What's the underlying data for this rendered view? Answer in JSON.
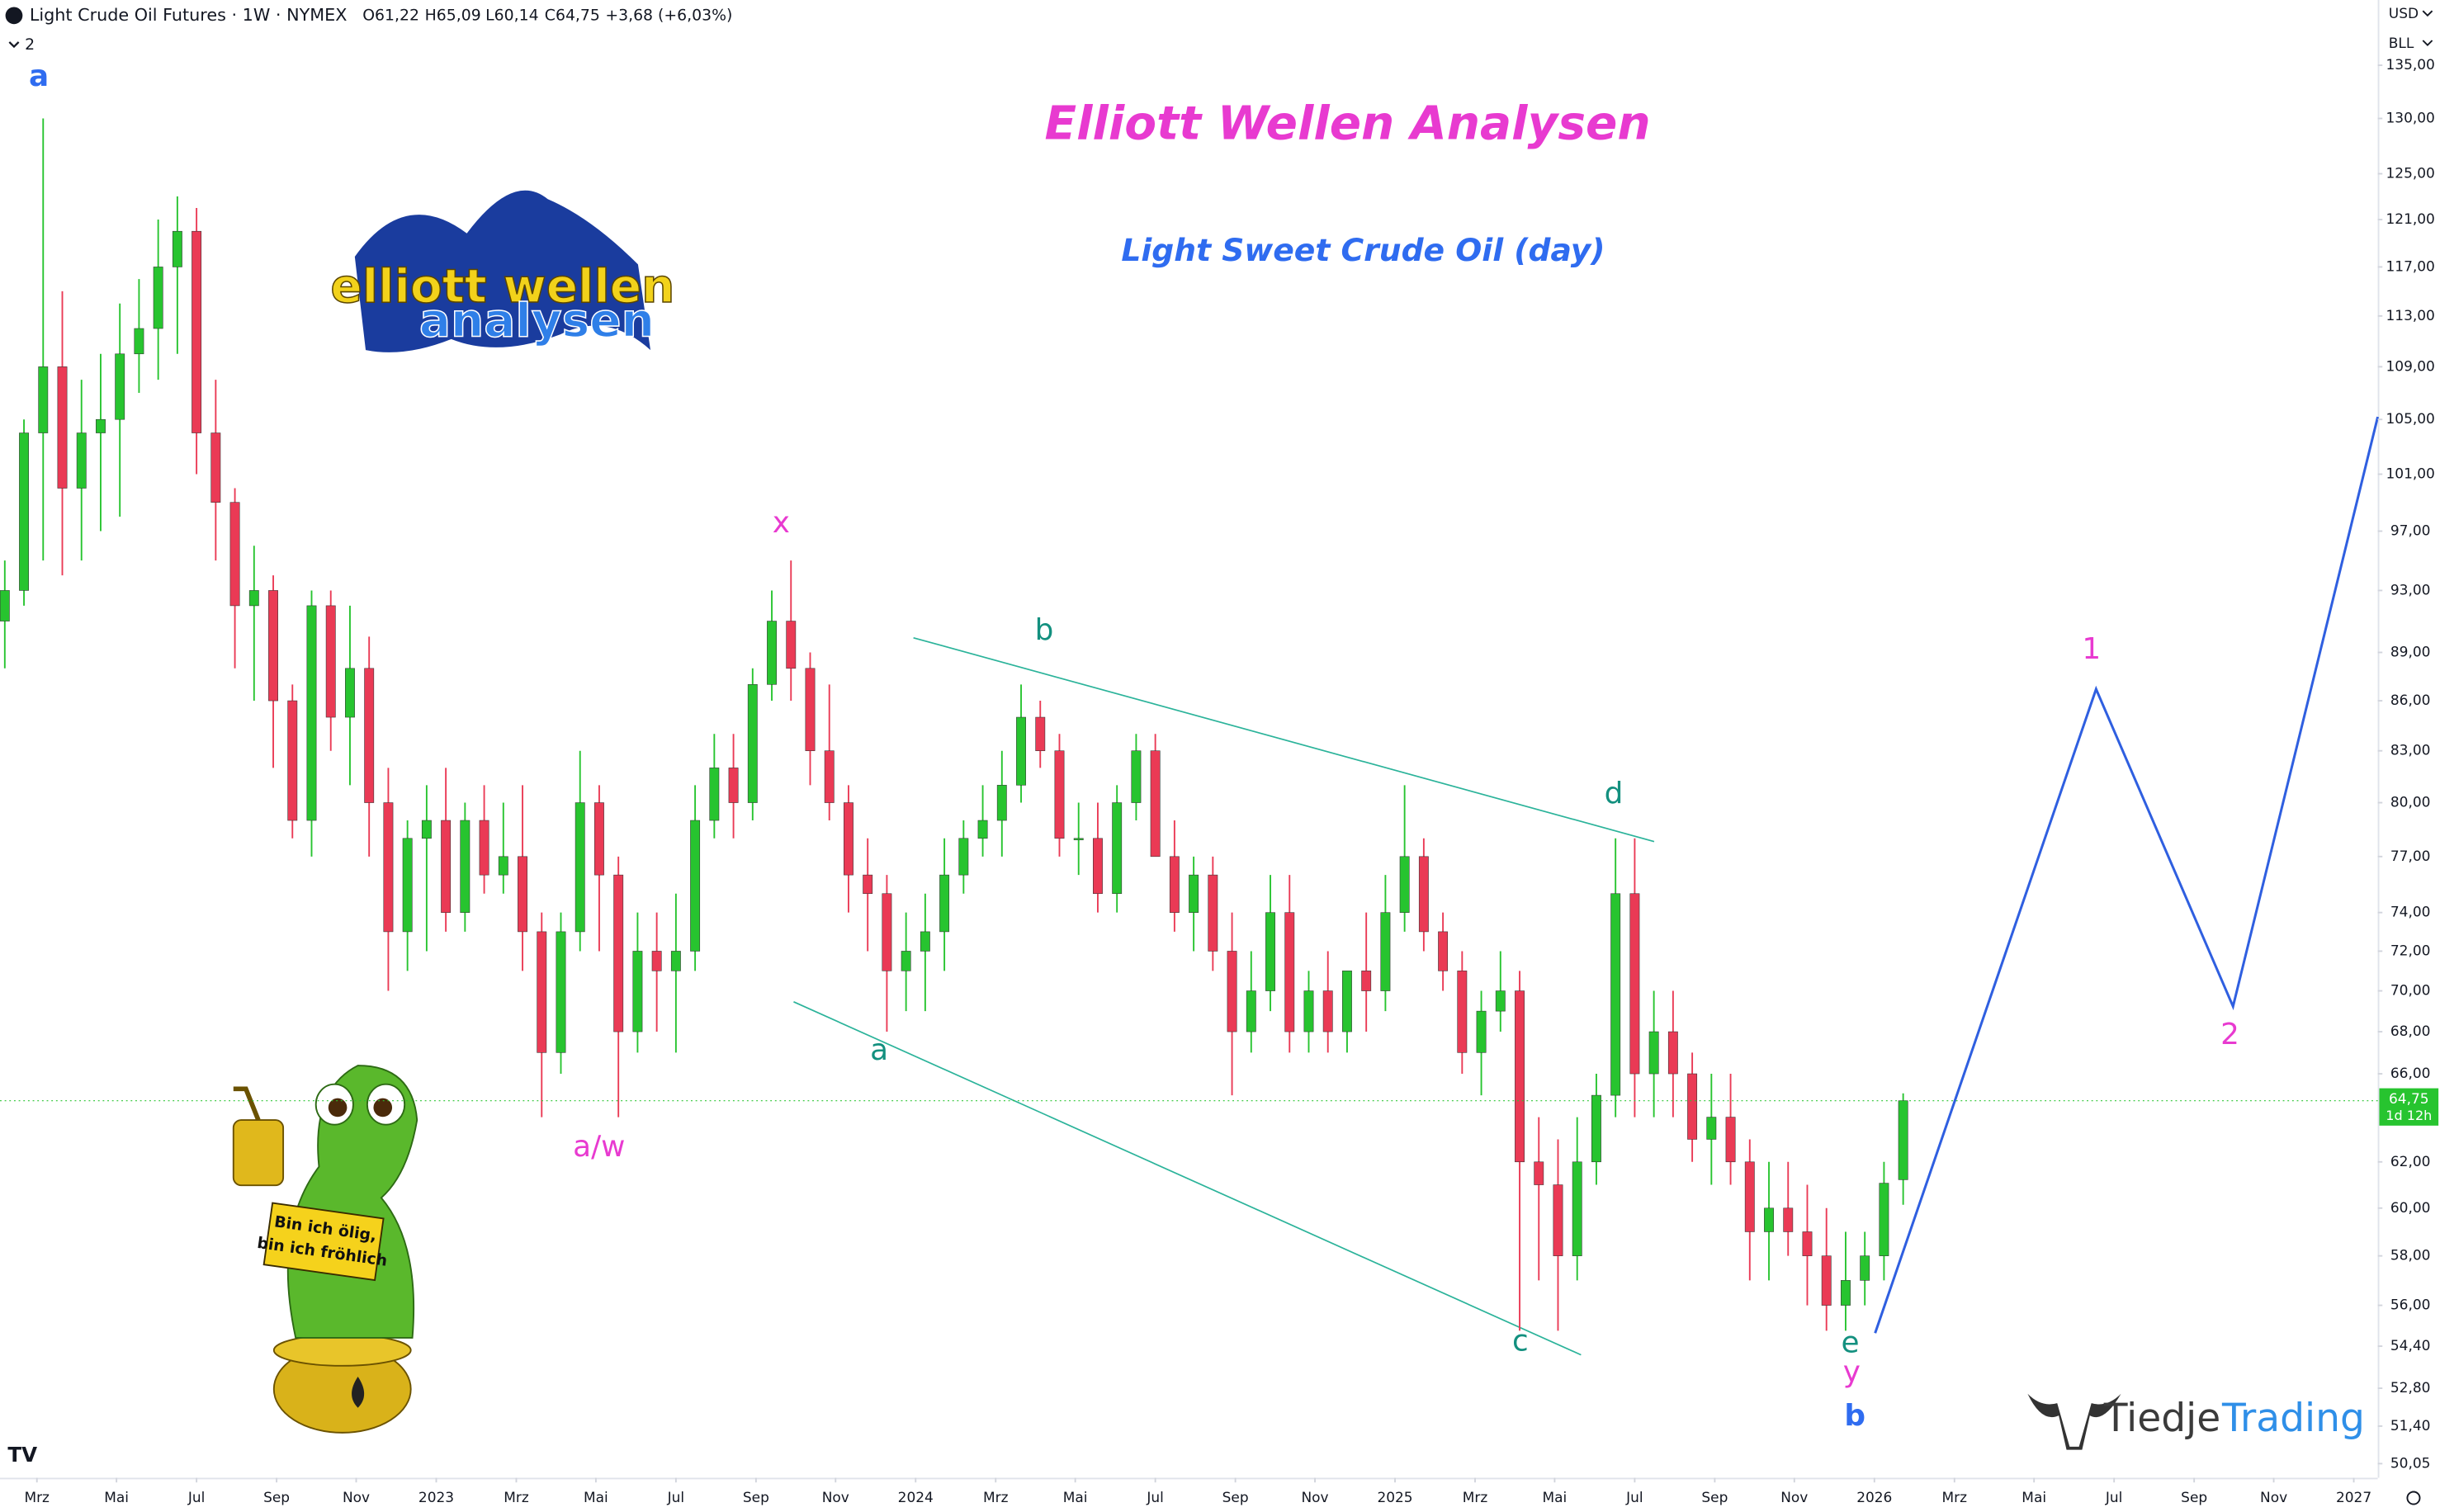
{
  "header": {
    "symbol": "Light Crude Oil Futures · 1W · NYMEX",
    "open": "O61,22",
    "high": "H65,09",
    "low": "L60,14",
    "close": "C64,75",
    "change": "+3,68 (+6,03%)",
    "indicator_count": "2",
    "currency": "USD",
    "unit": "BLL"
  },
  "logo": {
    "line1": "elliott wellen",
    "line2": "analysen"
  },
  "mascot_sign": [
    "Bin ich ölig,",
    "bin ich fröhlich"
  ],
  "brand": {
    "part1": "Tiedje",
    "part2": "Trading"
  },
  "chart_data": {
    "type": "candlestick",
    "title": "Elliott Wellen Analysen",
    "subtitle": "Light Sweet Crude Oil (day)",
    "log_scale": true,
    "grid": false,
    "up_color": "#27c42f",
    "down_color": "#ea3a55",
    "wave_labels": [
      "a",
      "x",
      "a/w",
      "b",
      "a",
      "c",
      "d",
      "e",
      "y",
      "b",
      "1",
      "2"
    ],
    "last_price": {
      "value": 64.75,
      "label": "64,75"
    },
    "countdown": "1d 12h",
    "xlim": [
      2022.09,
      2027.05
    ],
    "xticks": [
      {
        "value": 2022.167,
        "label": "Mrz"
      },
      {
        "value": 2022.333,
        "label": "Mai"
      },
      {
        "value": 2022.5,
        "label": "Jul"
      },
      {
        "value": 2022.667,
        "label": "Sep"
      },
      {
        "value": 2022.833,
        "label": "Nov"
      },
      2023,
      {
        "value": 2023.167,
        "label": "Mrz"
      },
      {
        "value": 2023.333,
        "label": "Mai"
      },
      {
        "value": 2023.5,
        "label": "Jul"
      },
      {
        "value": 2023.667,
        "label": "Sep"
      },
      {
        "value": 2023.833,
        "label": "Nov"
      },
      2024,
      {
        "value": 2024.167,
        "label": "Mrz"
      },
      {
        "value": 2024.333,
        "label": "Mai"
      },
      {
        "value": 2024.5,
        "label": "Jul"
      },
      {
        "value": 2024.667,
        "label": "Sep"
      },
      {
        "value": 2024.833,
        "label": "Nov"
      },
      2025,
      {
        "value": 2025.167,
        "label": "Mrz"
      },
      {
        "value": 2025.333,
        "label": "Mai"
      },
      {
        "value": 2025.5,
        "label": "Jul"
      },
      {
        "value": 2025.667,
        "label": "Sep"
      },
      {
        "value": 2025.833,
        "label": "Nov"
      },
      2026,
      {
        "value": 2026.167,
        "label": "Mrz"
      },
      {
        "value": 2026.333,
        "label": "Mai"
      },
      {
        "value": 2026.5,
        "label": "Jul"
      },
      {
        "value": 2026.667,
        "label": "Sep"
      },
      {
        "value": 2026.833,
        "label": "Nov"
      },
      2027
    ],
    "ylim": [
      49.55,
      141.4
    ],
    "yticks": [
      {
        "value": 135,
        "label": "135,00"
      },
      {
        "value": 130,
        "label": "130,00"
      },
      {
        "value": 125,
        "label": "125,00"
      },
      {
        "value": 121,
        "label": "121,00"
      },
      {
        "value": 117,
        "label": "117,00"
      },
      {
        "value": 113,
        "label": "113,00"
      },
      {
        "value": 109,
        "label": "109,00"
      },
      {
        "value": 105,
        "label": "105,00"
      },
      {
        "value": 101,
        "label": "101,00"
      },
      {
        "value": 97,
        "label": "97,00"
      },
      {
        "value": 93,
        "label": "93,00"
      },
      {
        "value": 89,
        "label": "89,00"
      },
      {
        "value": 86,
        "label": "86,00"
      },
      {
        "value": 83,
        "label": "83,00"
      },
      {
        "value": 80,
        "label": "80,00"
      },
      {
        "value": 77,
        "label": "77,00"
      },
      {
        "value": 74,
        "label": "74,00"
      },
      {
        "value": 72,
        "label": "72,00"
      },
      {
        "value": 70,
        "label": "70,00"
      },
      {
        "value": 68,
        "label": "68,00"
      },
      {
        "value": 66,
        "label": "66,00"
      },
      {
        "value": 62,
        "label": "62,00"
      },
      {
        "value": 60,
        "label": "60,00"
      },
      {
        "value": 58,
        "label": "58,00"
      },
      {
        "value": 56,
        "label": "56,00"
      },
      {
        "value": 54.4,
        "label": "54,40"
      },
      {
        "value": 52.8,
        "label": "52,80"
      },
      {
        "value": 51.4,
        "label": "51,40"
      },
      {
        "value": 50.05,
        "label": "50,05"
      }
    ],
    "x": [
      2022.1,
      2022.14,
      2022.18,
      2022.22,
      2022.26,
      2022.3,
      2022.34,
      2022.38,
      2022.42,
      2022.46,
      2022.5,
      2022.54,
      2022.58,
      2022.62,
      2022.66,
      2022.7,
      2022.74,
      2022.78,
      2022.82,
      2022.86,
      2022.9,
      2022.94,
      2022.98,
      2023.02,
      2023.06,
      2023.1,
      2023.14,
      2023.18,
      2023.22,
      2023.26,
      2023.3,
      2023.34,
      2023.38,
      2023.42,
      2023.46,
      2023.5,
      2023.54,
      2023.58,
      2023.62,
      2023.66,
      2023.7,
      2023.74,
      2023.78,
      2023.82,
      2023.86,
      2023.9,
      2023.94,
      2023.98,
      2024.02,
      2024.06,
      2024.1,
      2024.14,
      2024.18,
      2024.22,
      2024.26,
      2024.3,
      2024.34,
      2024.38,
      2024.42,
      2024.46,
      2024.5,
      2024.54,
      2024.58,
      2024.62,
      2024.66,
      2024.7,
      2024.74,
      2024.78,
      2024.82,
      2024.86,
      2024.9,
      2024.94,
      2024.98,
      2025.02,
      2025.06,
      2025.1,
      2025.14,
      2025.18,
      2025.22,
      2025.26,
      2025.3,
      2025.34,
      2025.38,
      2025.42,
      2025.46,
      2025.5,
      2025.54,
      2025.58,
      2025.62,
      2025.66,
      2025.7,
      2025.74,
      2025.78,
      2025.82,
      2025.86,
      2025.9,
      2025.94,
      2025.98,
      2026.02,
      2026.06
    ],
    "open": [
      91,
      93,
      104,
      109,
      100,
      104,
      105,
      110,
      112,
      117,
      120,
      104,
      99,
      92,
      93,
      86,
      79,
      92,
      85,
      88,
      80,
      73,
      78,
      79,
      74,
      79,
      76,
      77,
      73,
      67,
      73,
      80,
      76,
      68,
      72,
      71,
      72,
      79,
      82,
      80,
      87,
      91,
      88,
      83,
      80,
      76,
      75,
      71,
      72,
      73,
      76,
      78,
      79,
      81,
      85,
      83,
      78,
      78,
      75,
      80,
      83,
      77,
      74,
      76,
      72,
      68,
      70,
      74,
      68,
      70,
      68,
      71,
      70,
      74,
      77,
      73,
      71,
      67,
      69,
      70,
      62,
      61,
      58,
      62,
      65,
      75,
      66,
      68,
      66,
      63,
      64,
      62,
      59,
      60,
      59,
      58,
      56,
      57,
      58,
      61.22
    ],
    "high": [
      95,
      105,
      130,
      115,
      108,
      110,
      114,
      116,
      121,
      123,
      122,
      108,
      100,
      96,
      94,
      87,
      93,
      93,
      92,
      90,
      82,
      79,
      81,
      82,
      80,
      81,
      80,
      81,
      74,
      74,
      83,
      81,
      77,
      74,
      74,
      75,
      81,
      84,
      84,
      88,
      93,
      95,
      89,
      87,
      81,
      78,
      76,
      74,
      75,
      78,
      79,
      81,
      83,
      87,
      86,
      84,
      80,
      80,
      81,
      84,
      84,
      79,
      77,
      77,
      74,
      72,
      76,
      76,
      71,
      72,
      71,
      74,
      76,
      81,
      78,
      74,
      72,
      70,
      72,
      71,
      64,
      63,
      64,
      66,
      78,
      78,
      70,
      70,
      67,
      66,
      66,
      63,
      62,
      62,
      61,
      60,
      59,
      59,
      62,
      65.09
    ],
    "low": [
      88,
      92,
      95,
      94,
      95,
      97,
      98,
      107,
      108,
      110,
      101,
      95,
      88,
      86,
      82,
      78,
      77,
      83,
      81,
      77,
      70,
      71,
      72,
      73,
      73,
      75,
      75,
      71,
      64,
      66,
      72,
      72,
      64,
      67,
      68,
      67,
      71,
      78,
      78,
      79,
      86,
      86,
      81,
      79,
      74,
      72,
      68,
      69,
      69,
      71,
      75,
      77,
      77,
      80,
      82,
      77,
      76,
      74,
      74,
      79,
      77,
      73,
      72,
      71,
      65,
      67,
      69,
      67,
      67,
      67,
      67,
      68,
      69,
      73,
      72,
      70,
      66,
      65,
      68,
      55,
      57,
      55,
      57,
      61,
      64,
      64,
      64,
      64,
      62,
      61,
      61,
      57,
      57,
      58,
      56,
      55,
      55,
      56,
      57,
      60.14
    ],
    "close": [
      93,
      104,
      109,
      100,
      104,
      105,
      110,
      112,
      117,
      120,
      104,
      99,
      92,
      93,
      86,
      79,
      92,
      85,
      88,
      80,
      73,
      78,
      79,
      74,
      79,
      76,
      77,
      73,
      67,
      73,
      80,
      76,
      68,
      72,
      71,
      72,
      79,
      82,
      80,
      87,
      91,
      88,
      83,
      80,
      76,
      75,
      71,
      72,
      73,
      76,
      78,
      79,
      81,
      85,
      83,
      78,
      78,
      75,
      80,
      83,
      77,
      74,
      76,
      72,
      68,
      70,
      74,
      68,
      70,
      68,
      71,
      70,
      74,
      77,
      73,
      71,
      67,
      69,
      70,
      62,
      61,
      58,
      62,
      65,
      75,
      66,
      68,
      66,
      63,
      64,
      62,
      59,
      60,
      59,
      58,
      56,
      57,
      58,
      61.07,
      64.75
    ]
  }
}
